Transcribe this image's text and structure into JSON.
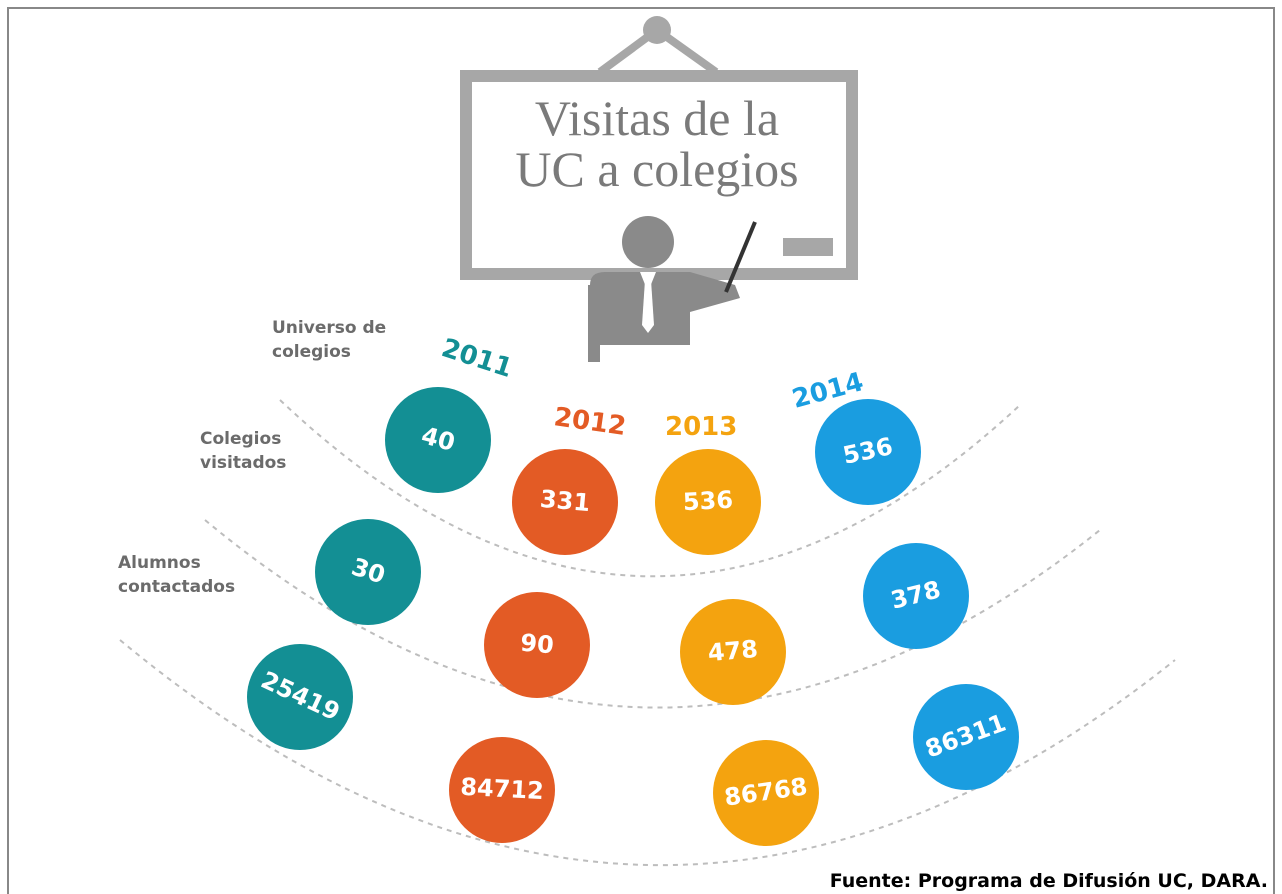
{
  "title": {
    "line1": "Visitas de la",
    "line2": "UC a colegios"
  },
  "years": [
    "2011",
    "2012",
    "2013",
    "2014"
  ],
  "rows": [
    {
      "label": [
        "Universo de",
        "colegios"
      ],
      "values": [
        40,
        331,
        536,
        536
      ]
    },
    {
      "label": [
        "Colegios",
        "visitados"
      ],
      "values": [
        30,
        90,
        478,
        378
      ]
    },
    {
      "label": [
        "Alumnos",
        "contactados"
      ],
      "values": [
        25419,
        84712,
        86768,
        86311
      ]
    }
  ],
  "source": "Fuente: Programa de Difusión UC, DARA."
}
